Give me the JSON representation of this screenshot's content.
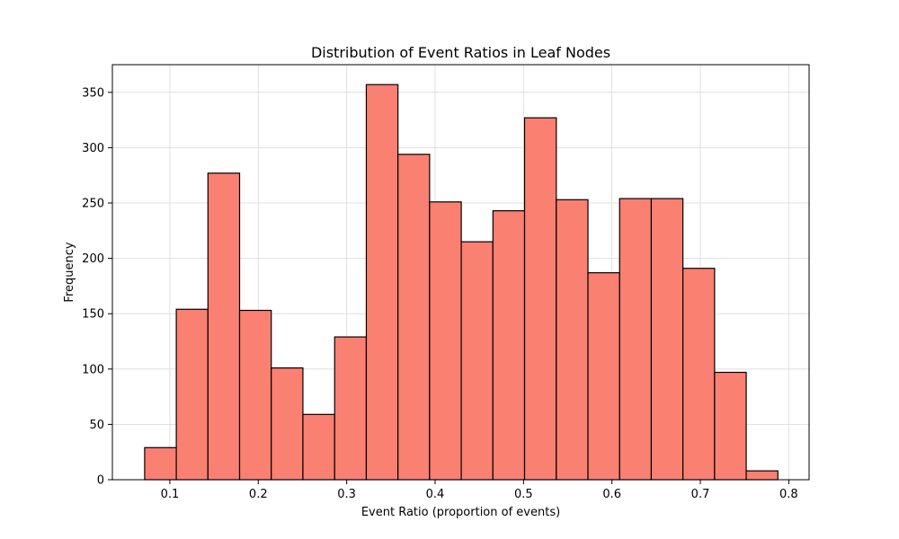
{
  "chart_data": {
    "type": "bar",
    "title": "Distribution of Event Ratios in Leaf Nodes",
    "xlabel": "Event Ratio (proportion of events)",
    "ylabel": "Frequency",
    "xlim": [
      0.035,
      0.823
    ],
    "ylim": [
      0,
      375
    ],
    "xticks": [
      0.1,
      0.2,
      0.3,
      0.4,
      0.5,
      0.6,
      0.7,
      0.8
    ],
    "xtick_labels": [
      "0.1",
      "0.2",
      "0.3",
      "0.4",
      "0.5",
      "0.6",
      "0.7",
      "0.8"
    ],
    "yticks": [
      0,
      50,
      100,
      150,
      200,
      250,
      300,
      350
    ],
    "ytick_labels": [
      "0",
      "50",
      "100",
      "150",
      "200",
      "250",
      "300",
      "350"
    ],
    "grid": true,
    "bar_color": "#fa8072",
    "edge_color": "#000000",
    "bins": [
      {
        "left": 0.0715,
        "right": 0.1073,
        "value": 29
      },
      {
        "left": 0.1073,
        "right": 0.1431,
        "value": 154
      },
      {
        "left": 0.1431,
        "right": 0.1789,
        "value": 277
      },
      {
        "left": 0.1789,
        "right": 0.2147,
        "value": 153
      },
      {
        "left": 0.2147,
        "right": 0.2505,
        "value": 101
      },
      {
        "left": 0.2505,
        "right": 0.2864,
        "value": 59
      },
      {
        "left": 0.2864,
        "right": 0.3222,
        "value": 129
      },
      {
        "left": 0.3222,
        "right": 0.358,
        "value": 357
      },
      {
        "left": 0.358,
        "right": 0.3938,
        "value": 294
      },
      {
        "left": 0.3938,
        "right": 0.4296,
        "value": 251
      },
      {
        "left": 0.4296,
        "right": 0.4654,
        "value": 215
      },
      {
        "left": 0.4654,
        "right": 0.5012,
        "value": 243
      },
      {
        "left": 0.5012,
        "right": 0.5371,
        "value": 327
      },
      {
        "left": 0.5371,
        "right": 0.5729,
        "value": 253
      },
      {
        "left": 0.5729,
        "right": 0.6087,
        "value": 187
      },
      {
        "left": 0.6087,
        "right": 0.6445,
        "value": 254
      },
      {
        "left": 0.6445,
        "right": 0.6803,
        "value": 254
      },
      {
        "left": 0.6803,
        "right": 0.7161,
        "value": 191
      },
      {
        "left": 0.7161,
        "right": 0.7519,
        "value": 97
      },
      {
        "left": 0.7519,
        "right": 0.7877,
        "value": 8
      }
    ]
  }
}
